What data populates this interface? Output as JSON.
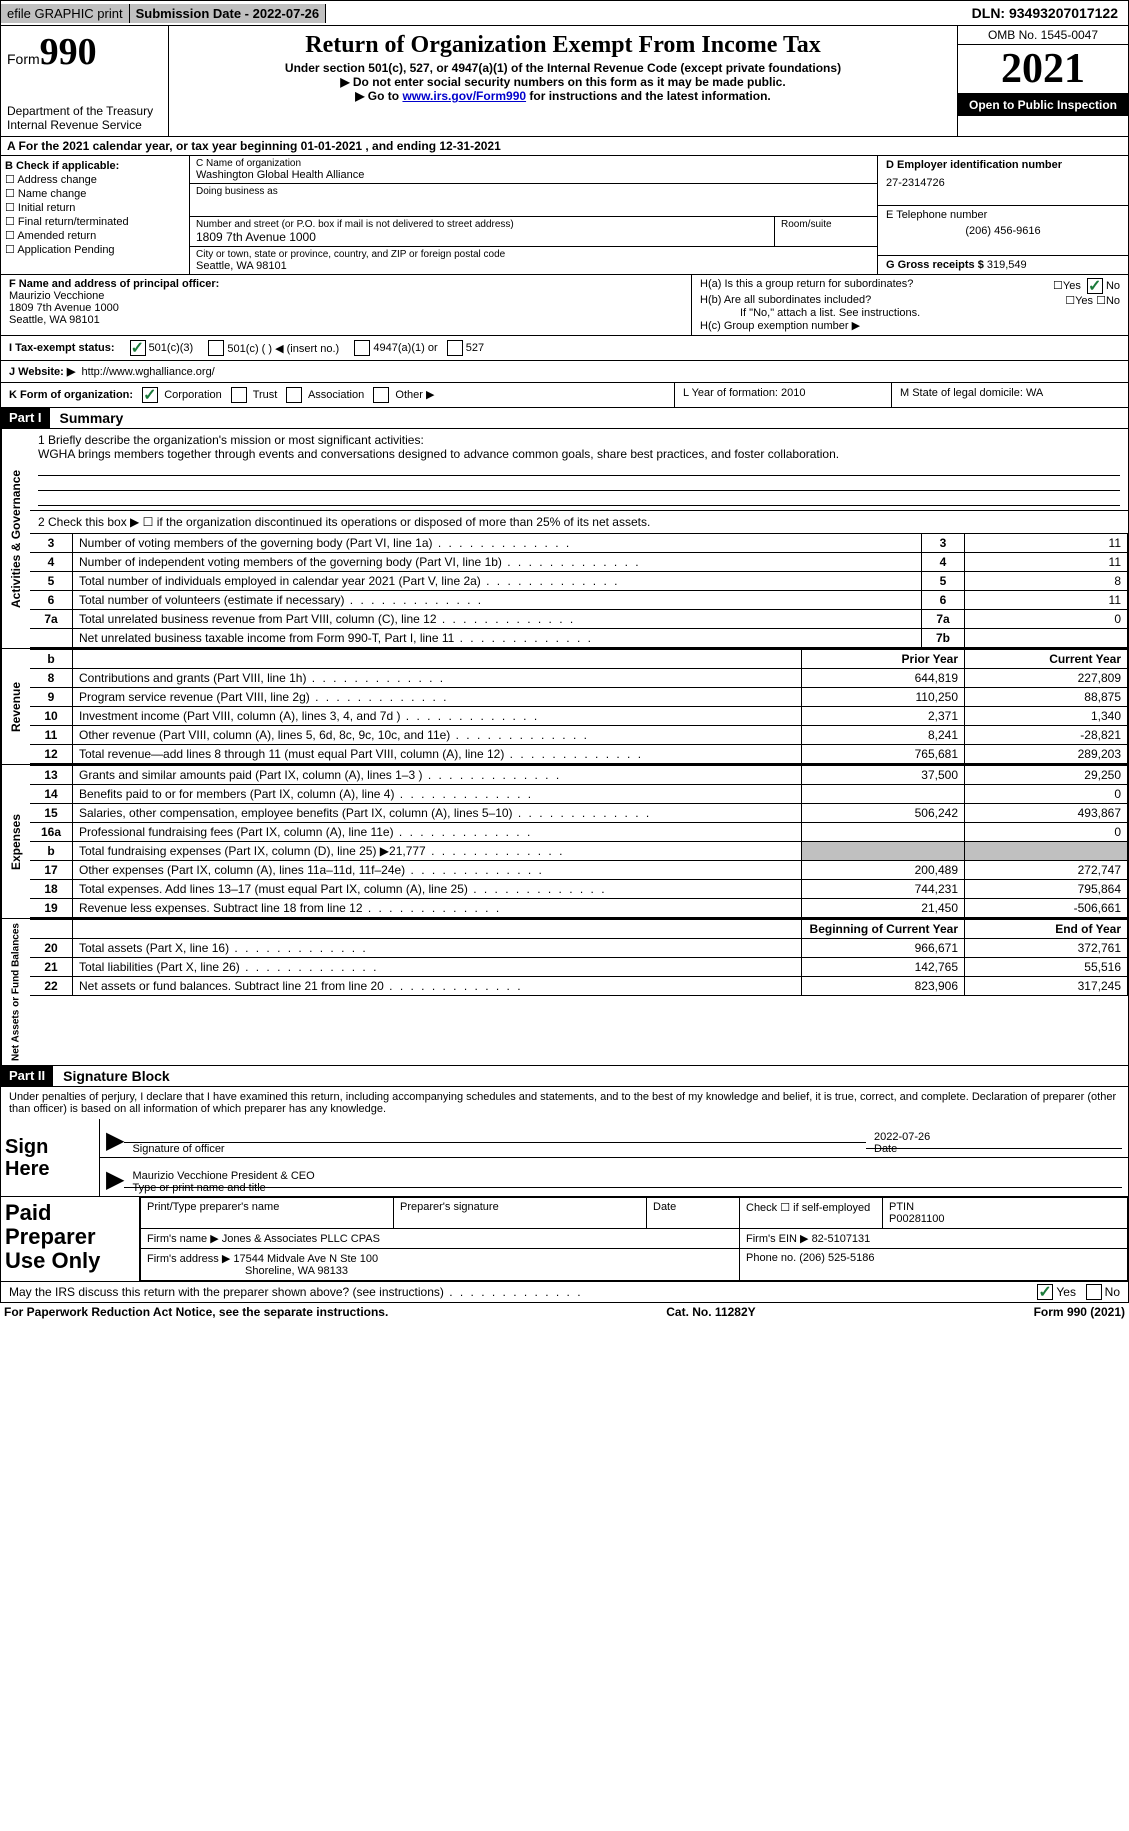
{
  "topbar": {
    "efile": "efile GRAPHIC print",
    "submission_date_label": "Submission Date - 2022-07-26",
    "dln": "DLN: 93493207017122"
  },
  "header": {
    "form_word": "Form",
    "form_number": "990",
    "dept": "Department of the Treasury",
    "irs": "Internal Revenue Service",
    "title": "Return of Organization Exempt From Income Tax",
    "subtitle1": "Under section 501(c), 527, or 4947(a)(1) of the Internal Revenue Code (except private foundations)",
    "subtitle2": "▶ Do not enter social security numbers on this form as it may be made public.",
    "subtitle3_pre": "▶ Go to ",
    "subtitle3_link": "www.irs.gov/Form990",
    "subtitle3_post": " for instructions and the latest information.",
    "omb": "OMB No. 1545-0047",
    "year": "2021",
    "open": "Open to Public Inspection"
  },
  "periodA": "A For the 2021 calendar year, or tax year beginning 01-01-2021    , and ending 12-31-2021",
  "colB": {
    "header": "B Check if applicable:",
    "items": [
      "Address change",
      "Name change",
      "Initial return",
      "Final return/terminated",
      "Amended return",
      "Application Pending"
    ]
  },
  "colC": {
    "name_label": "C Name of organization",
    "name": "Washington Global Health Alliance",
    "dba_label": "Doing business as",
    "dba": "",
    "street_label": "Number and street (or P.O. box if mail is not delivered to street address)",
    "street": "1809 7th Avenue 1000",
    "room_label": "Room/suite",
    "city_label": "City or town, state or province, country, and ZIP or foreign postal code",
    "city": "Seattle, WA  98101"
  },
  "colD": {
    "ein_label": "D Employer identification number",
    "ein": "27-2314726",
    "tel_label": "E Telephone number",
    "tel": "(206) 456-9616",
    "gross_label": "G Gross receipts $",
    "gross": "319,549"
  },
  "officerF": {
    "label": "F Name and address of principal officer:",
    "name": "Maurizio Vecchione",
    "addr1": "1809 7th Avenue 1000",
    "addr2": "Seattle, WA  98101"
  },
  "sectionH": {
    "ha": "H(a)  Is this a group return for subordinates?",
    "hb": "H(b)  Are all subordinates included?",
    "hb_note": "If \"No,\" attach a list. See instructions.",
    "hc": "H(c)  Group exemption number ▶"
  },
  "taxExemptI": {
    "label": "I   Tax-exempt status:",
    "opt1": "501(c)(3)",
    "opt2": "501(c) (  ) ◀ (insert no.)",
    "opt3": "4947(a)(1) or",
    "opt4": "527"
  },
  "websiteJ": {
    "label": "J   Website: ▶",
    "url": "http://www.wghalliance.org/"
  },
  "rowK": {
    "k_label": "K Form of organization:",
    "corp": "Corporation",
    "trust": "Trust",
    "assoc": "Association",
    "other": "Other ▶",
    "l_label": "L Year of formation: 2010",
    "m_label": "M State of legal domicile: WA"
  },
  "part1": {
    "header": "Part I",
    "title": "Summary",
    "vtab1": "Activities & Governance",
    "vtab2": "Revenue",
    "vtab3": "Expenses",
    "vtab4": "Net Assets or Fund Balances",
    "line1_label": "1   Briefly describe the organization's mission or most significant activities:",
    "line1_text": "WGHA brings members together through events and conversations designed to advance common goals, share best practices, and foster collaboration.",
    "line2": "2    Check this box ▶ ☐  if the organization discontinued its operations or disposed of more than 25% of its net assets.",
    "rows_ag": [
      {
        "n": "3",
        "desc": "Number of voting members of the governing body (Part VI, line 1a)",
        "box": "3",
        "val": "11"
      },
      {
        "n": "4",
        "desc": "Number of independent voting members of the governing body (Part VI, line 1b)",
        "box": "4",
        "val": "11"
      },
      {
        "n": "5",
        "desc": "Total number of individuals employed in calendar year 2021 (Part V, line 2a)",
        "box": "5",
        "val": "8"
      },
      {
        "n": "6",
        "desc": "Total number of volunteers (estimate if necessary)",
        "box": "6",
        "val": "11"
      },
      {
        "n": "7a",
        "desc": "Total unrelated business revenue from Part VIII, column (C), line 12",
        "box": "7a",
        "val": "0"
      },
      {
        "n": "",
        "desc": "Net unrelated business taxable income from Form 990-T, Part I, line 11",
        "box": "7b",
        "val": ""
      }
    ],
    "col_headers": {
      "b": "b",
      "prior": "Prior Year",
      "current": "Current Year"
    },
    "rows_rev": [
      {
        "n": "8",
        "desc": "Contributions and grants (Part VIII, line 1h)",
        "prior": "644,819",
        "cur": "227,809"
      },
      {
        "n": "9",
        "desc": "Program service revenue (Part VIII, line 2g)",
        "prior": "110,250",
        "cur": "88,875"
      },
      {
        "n": "10",
        "desc": "Investment income (Part VIII, column (A), lines 3, 4, and 7d )",
        "prior": "2,371",
        "cur": "1,340"
      },
      {
        "n": "11",
        "desc": "Other revenue (Part VIII, column (A), lines 5, 6d, 8c, 9c, 10c, and 11e)",
        "prior": "8,241",
        "cur": "-28,821"
      },
      {
        "n": "12",
        "desc": "Total revenue—add lines 8 through 11 (must equal Part VIII, column (A), line 12)",
        "prior": "765,681",
        "cur": "289,203"
      }
    ],
    "rows_exp": [
      {
        "n": "13",
        "desc": "Grants and similar amounts paid (Part IX, column (A), lines 1–3 )",
        "prior": "37,500",
        "cur": "29,250"
      },
      {
        "n": "14",
        "desc": "Benefits paid to or for members (Part IX, column (A), line 4)",
        "prior": "",
        "cur": "0"
      },
      {
        "n": "15",
        "desc": "Salaries, other compensation, employee benefits (Part IX, column (A), lines 5–10)",
        "prior": "506,242",
        "cur": "493,867"
      },
      {
        "n": "16a",
        "desc": "Professional fundraising fees (Part IX, column (A), line 11e)",
        "prior": "",
        "cur": "0"
      },
      {
        "n": "b",
        "desc": "Total fundraising expenses (Part IX, column (D), line 25) ▶21,777",
        "prior": "shaded",
        "cur": "shaded"
      },
      {
        "n": "17",
        "desc": "Other expenses (Part IX, column (A), lines 11a–11d, 11f–24e)",
        "prior": "200,489",
        "cur": "272,747"
      },
      {
        "n": "18",
        "desc": "Total expenses. Add lines 13–17 (must equal Part IX, column (A), line 25)",
        "prior": "744,231",
        "cur": "795,864"
      },
      {
        "n": "19",
        "desc": "Revenue less expenses. Subtract line 18 from line 12",
        "prior": "21,450",
        "cur": "-506,661"
      }
    ],
    "col_headers2": {
      "begin": "Beginning of Current Year",
      "end": "End of Year"
    },
    "rows_net": [
      {
        "n": "20",
        "desc": "Total assets (Part X, line 16)",
        "prior": "966,671",
        "cur": "372,761"
      },
      {
        "n": "21",
        "desc": "Total liabilities (Part X, line 26)",
        "prior": "142,765",
        "cur": "55,516"
      },
      {
        "n": "22",
        "desc": "Net assets or fund balances. Subtract line 21 from line 20",
        "prior": "823,906",
        "cur": "317,245"
      }
    ]
  },
  "part2": {
    "header": "Part II",
    "title": "Signature Block",
    "declaration": "Under penalties of perjury, I declare that I have examined this return, including accompanying schedules and statements, and to the best of my knowledge and belief, it is true, correct, and complete. Declaration of preparer (other than officer) is based on all information of which preparer has any knowledge.",
    "sign_here": "Sign Here",
    "sig_officer": "Signature of officer",
    "sig_date": "2022-07-26",
    "date_label": "Date",
    "officer_name": "Maurizio Vecchione President & CEO",
    "type_name": "Type or print name and title",
    "paid": "Paid Preparer Use Only",
    "prep_name_label": "Print/Type preparer's name",
    "prep_sig_label": "Preparer's signature",
    "prep_date_label": "Date",
    "check_self": "Check ☐ if self-employed",
    "ptin_label": "PTIN",
    "ptin": "P00281100",
    "firm_name_label": "Firm's name    ▶",
    "firm_name": "Jones & Associates PLLC CPAS",
    "firm_ein_label": "Firm's EIN ▶",
    "firm_ein": "82-5107131",
    "firm_addr_label": "Firm's address ▶",
    "firm_addr1": "17544 Midvale Ave N Ste 100",
    "firm_addr2": "Shoreline, WA  98133",
    "phone_label": "Phone no.",
    "phone": "(206) 525-5186"
  },
  "may_irs": {
    "text": "May the IRS discuss this return with the preparer shown above? (see instructions)",
    "yes": "Yes",
    "no": "No"
  },
  "footer": {
    "left": "For Paperwork Reduction Act Notice, see the separate instructions.",
    "mid": "Cat. No. 11282Y",
    "right": "Form 990 (2021)"
  },
  "yes": "Yes",
  "no": "No"
}
